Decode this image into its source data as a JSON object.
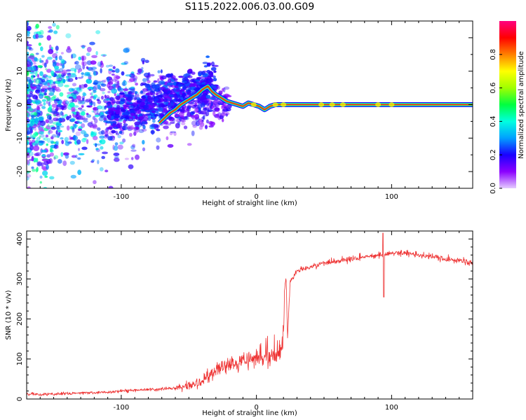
{
  "figure": {
    "title": "S115.2022.006.03.00.G09"
  },
  "chart_data": [
    {
      "type": "heatmap",
      "xlabel": "Height of straight line (km)",
      "ylabel": "Frequency (Hz)",
      "xlim": [
        -170,
        160
      ],
      "ylim": [
        -25,
        25
      ],
      "x_ticks": [
        -100,
        0,
        100
      ],
      "y_ticks": [
        -20,
        -10,
        0,
        10,
        20
      ],
      "colorbar": {
        "label": "Normalized spectral amplitude",
        "range": [
          0,
          1
        ],
        "ticks": [
          0.0,
          0.2,
          0.4,
          0.6,
          0.8
        ],
        "colormap": [
          "#e5ccff",
          "#8b00ff",
          "#1a00ff",
          "#00a0ff",
          "#00ffe0",
          "#00ff40",
          "#a0ff00",
          "#ffff00",
          "#ff8000",
          "#ff0000",
          "#ff0080"
        ]
      },
      "ridge": [
        {
          "x": -72,
          "y": -5.5
        },
        {
          "x": -68,
          "y": -4
        },
        {
          "x": -64,
          "y": -2.5
        },
        {
          "x": -60,
          "y": -1.5
        },
        {
          "x": -56,
          "y": 0
        },
        {
          "x": -52,
          "y": 1
        },
        {
          "x": -48,
          "y": 2
        },
        {
          "x": -44,
          "y": 3
        },
        {
          "x": -40,
          "y": 4.5
        },
        {
          "x": -36,
          "y": 5.5
        },
        {
          "x": -33,
          "y": 4
        },
        {
          "x": -30,
          "y": 3
        },
        {
          "x": -26,
          "y": 2
        },
        {
          "x": -22,
          "y": 1
        },
        {
          "x": -18,
          "y": 0.5
        },
        {
          "x": -14,
          "y": 0
        },
        {
          "x": -10,
          "y": -0.5
        },
        {
          "x": -6,
          "y": 0.5
        },
        {
          "x": -2,
          "y": 0
        },
        {
          "x": 2,
          "y": -0.5
        },
        {
          "x": 6,
          "y": -1.5
        },
        {
          "x": 10,
          "y": -0.5
        },
        {
          "x": 14,
          "y": 0
        },
        {
          "x": 20,
          "y": 0
        },
        {
          "x": 40,
          "y": 0
        },
        {
          "x": 80,
          "y": 0
        },
        {
          "x": 120,
          "y": 0
        },
        {
          "x": 160,
          "y": 0
        }
      ],
      "noise_region": {
        "x_min": -170,
        "x_max": -20,
        "amplitude_range": [
          0.05,
          0.35
        ]
      }
    },
    {
      "type": "line",
      "xlabel": "Height of straight line (km)",
      "ylabel": "SNR (10 * v/v)",
      "xlim": [
        -170,
        160
      ],
      "ylim": [
        0,
        420
      ],
      "x_ticks": [
        -100,
        0,
        100
      ],
      "y_ticks": [
        0,
        100,
        200,
        300,
        400
      ],
      "series": [
        {
          "color": "#ee3333",
          "x": [
            -170,
            -150,
            -130,
            -110,
            -90,
            -70,
            -60,
            -50,
            -40,
            -35,
            -30,
            -25,
            -20,
            -15,
            -10,
            -5,
            0,
            5,
            10,
            15,
            18,
            20,
            21,
            22,
            23,
            25,
            30,
            40,
            50,
            60,
            70,
            80,
            90,
            95,
            100,
            110,
            120,
            130,
            140,
            150,
            160
          ],
          "y": [
            12,
            12,
            15,
            17,
            22,
            25,
            28,
            30,
            45,
            60,
            70,
            80,
            85,
            90,
            95,
            100,
            100,
            105,
            110,
            100,
            110,
            160,
            280,
            300,
            150,
            290,
            320,
            330,
            340,
            345,
            350,
            355,
            360,
            360,
            365,
            365,
            360,
            355,
            350,
            345,
            340
          ]
        }
      ]
    }
  ]
}
